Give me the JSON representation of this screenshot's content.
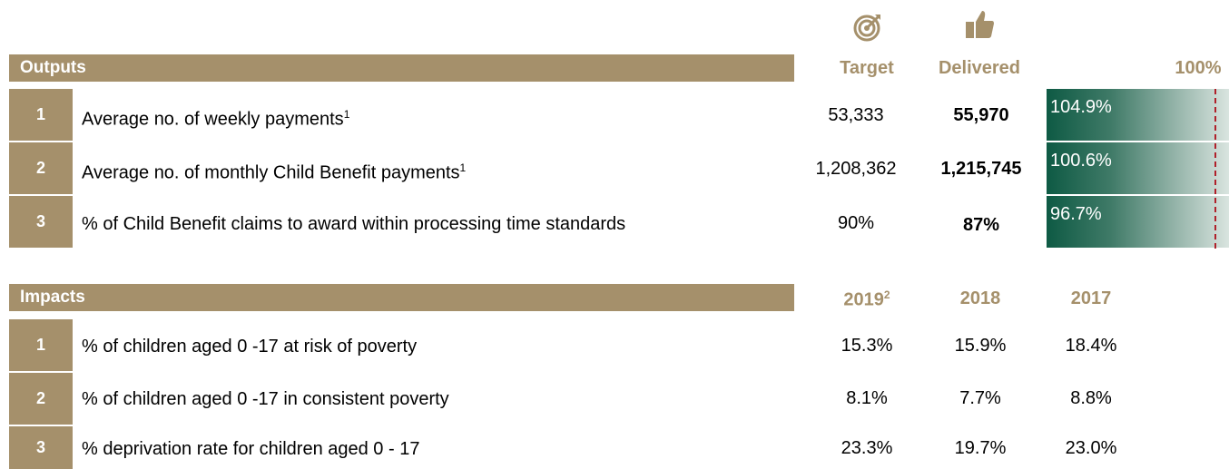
{
  "outputs": {
    "title": "Outputs",
    "col_target": "Target",
    "col_delivered": "Delivered",
    "col_pct": "100%",
    "icons": {
      "target": "target-icon",
      "delivered": "thumbs-up-icon"
    },
    "rows": [
      {
        "num": "1",
        "label": "Average no. of weekly payments",
        "sup": "1",
        "target": "53,333",
        "delivered": "55,970",
        "pct_label": "104.9%",
        "pct_value": 104.9
      },
      {
        "num": "2",
        "label": "Average no. of monthly Child Benefit payments",
        "sup": "1",
        "target": "1,208,362",
        "delivered": "1,215,745",
        "pct_label": "100.6%",
        "pct_value": 100.6
      },
      {
        "num": "3",
        "label": "% of Child Benefit claims to award within processing time standards",
        "sup": "",
        "target": "90%",
        "delivered": "87%",
        "pct_label": "96.7%",
        "pct_value": 96.7
      }
    ]
  },
  "impacts": {
    "title": "Impacts",
    "col_2019": "2019",
    "col_2019_sup": "2",
    "col_2018": "2018",
    "col_2017": "2017",
    "rows": [
      {
        "num": "1",
        "label": "% of children aged 0 -17 at risk of poverty",
        "v2019": "15.3%",
        "v2018": "15.9%",
        "v2017": "18.4%"
      },
      {
        "num": "2",
        "label": "% of children aged 0 -17 in consistent poverty",
        "v2019": "8.1%",
        "v2018": "7.7%",
        "v2017": "8.8%"
      },
      {
        "num": "3",
        "label": "% deprivation rate for children aged 0 - 17",
        "v2019": "23.3%",
        "v2018": "19.7%",
        "v2017": "23.0%"
      }
    ]
  },
  "colors": {
    "band": "#a5906b",
    "bar_dark": "#0e5a44",
    "ref_line": "#b0202a"
  }
}
